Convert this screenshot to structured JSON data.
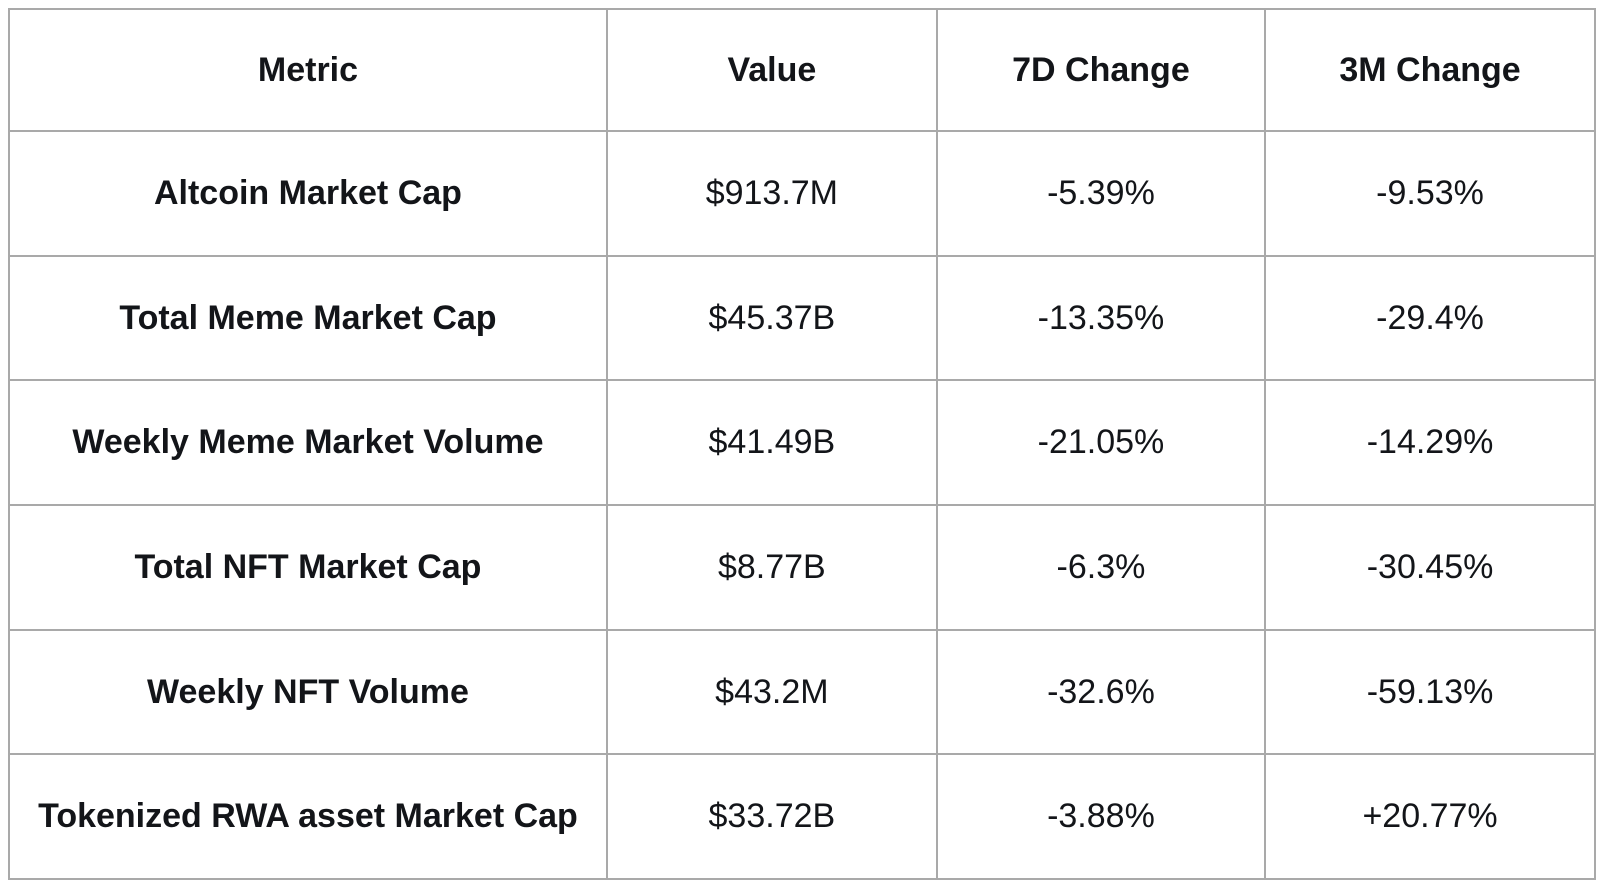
{
  "chart_data": {
    "type": "table",
    "columns": [
      "Metric",
      "Value",
      "7D Change",
      "3M Change"
    ],
    "rows": [
      [
        "Altcoin Market Cap",
        "$913.7M",
        "-5.39%",
        "-9.53%"
      ],
      [
        "Total Meme Market Cap",
        "$45.37B",
        "-13.35%",
        "-29.4%"
      ],
      [
        "Weekly Meme Market Volume",
        "$41.49B",
        "-21.05%",
        "-14.29%"
      ],
      [
        "Total NFT Market Cap",
        "$8.77B",
        "-6.3%",
        "-30.45%"
      ],
      [
        "Weekly NFT Volume",
        "$43.2M",
        "-32.6%",
        "-59.13%"
      ],
      [
        "Tokenized RWA asset Market Cap",
        "$33.72B",
        "-3.88%",
        "+20.77%"
      ]
    ],
    "layout_hints": {
      "header_row_bold": true,
      "metric_column_bold": true,
      "all_cells_centered": true,
      "grid_on": true
    }
  },
  "colors": {
    "background": "#ffffff",
    "border": "#a9a9a9",
    "text": "#131519"
  }
}
